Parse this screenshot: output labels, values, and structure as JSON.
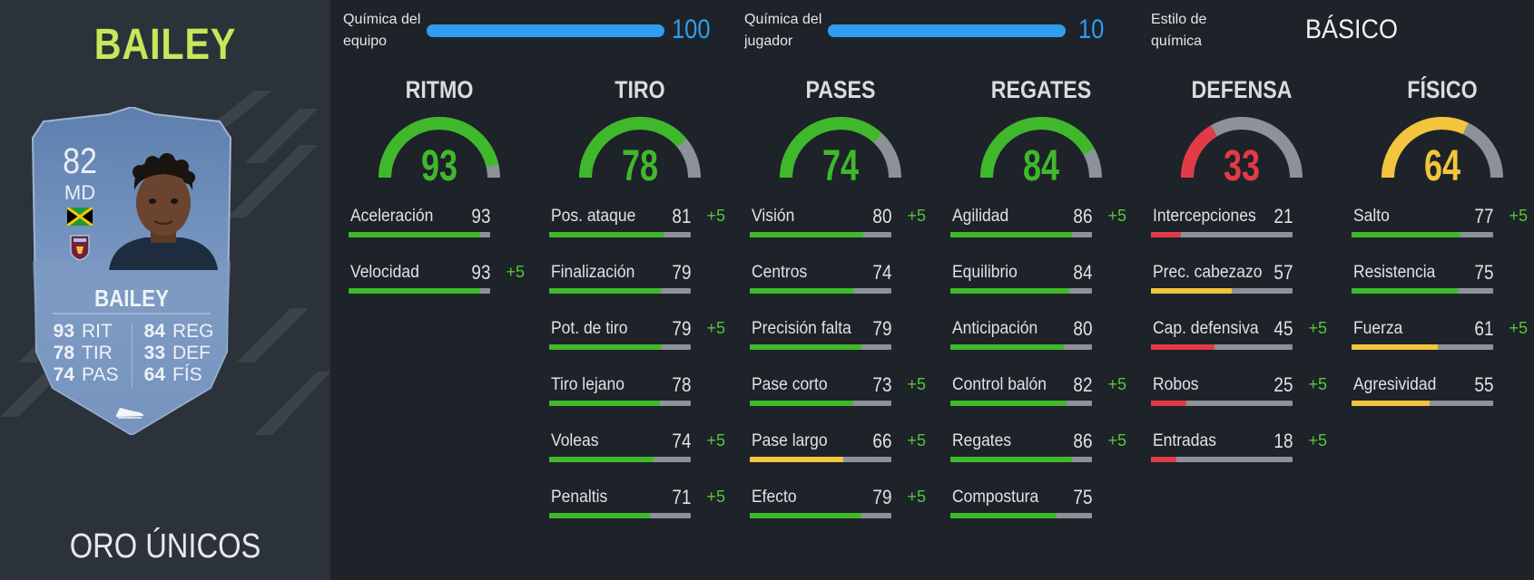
{
  "player": {
    "name": "BAILEY",
    "rarity": "ORO ÚNICOS",
    "card": {
      "rating": "82",
      "position": "MD",
      "name": "BAILEY",
      "stats": [
        {
          "value": "93",
          "label": "RIT"
        },
        {
          "value": "78",
          "label": "TIR"
        },
        {
          "value": "74",
          "label": "PAS"
        },
        {
          "value": "84",
          "label": "REG"
        },
        {
          "value": "33",
          "label": "DEF"
        },
        {
          "value": "64",
          "label": "FÍS"
        }
      ]
    }
  },
  "chemistry": {
    "team_label_1": "Química del",
    "team_label_2": "equipo",
    "team_value": "100",
    "team_fraction": 1.0,
    "player_label_1": "Química del",
    "player_label_2": "jugador",
    "player_value": "10",
    "player_fraction": 1.0,
    "style_label_1": "Estilo de",
    "style_label_2": "química",
    "style_value": "BÁSICO"
  },
  "colors": {
    "green": "#3fb82c",
    "yellow": "#f2c53d",
    "red": "#e23a47",
    "blue": "#2f9df0",
    "track": "#8c9297"
  },
  "categories": [
    {
      "title": "RITMO",
      "value": "93",
      "rating": 93,
      "color": "green",
      "attributes": [
        {
          "name": "Aceleración",
          "value": "93",
          "bonus": "",
          "color": "green"
        },
        {
          "name": "Velocidad",
          "value": "93",
          "bonus": "+5",
          "color": "green"
        }
      ]
    },
    {
      "title": "TIRO",
      "value": "78",
      "rating": 78,
      "color": "green",
      "attributes": [
        {
          "name": "Pos. ataque",
          "value": "81",
          "bonus": "+5",
          "color": "green"
        },
        {
          "name": "Finalización",
          "value": "79",
          "bonus": "",
          "color": "green"
        },
        {
          "name": "Pot. de tiro",
          "value": "79",
          "bonus": "+5",
          "color": "green"
        },
        {
          "name": "Tiro lejano",
          "value": "78",
          "bonus": "",
          "color": "green"
        },
        {
          "name": "Voleas",
          "value": "74",
          "bonus": "+5",
          "color": "green"
        },
        {
          "name": "Penaltis",
          "value": "71",
          "bonus": "+5",
          "color": "green"
        }
      ]
    },
    {
      "title": "PASES",
      "value": "74",
      "rating": 74,
      "color": "green",
      "attributes": [
        {
          "name": "Visión",
          "value": "80",
          "bonus": "+5",
          "color": "green"
        },
        {
          "name": "Centros",
          "value": "74",
          "bonus": "",
          "color": "green"
        },
        {
          "name": "Precisión falta",
          "value": "79",
          "bonus": "",
          "color": "green"
        },
        {
          "name": "Pase corto",
          "value": "73",
          "bonus": "+5",
          "color": "green"
        },
        {
          "name": "Pase largo",
          "value": "66",
          "bonus": "+5",
          "color": "yellow"
        },
        {
          "name": "Efecto",
          "value": "79",
          "bonus": "+5",
          "color": "green"
        }
      ]
    },
    {
      "title": "REGATES",
      "value": "84",
      "rating": 84,
      "color": "green",
      "attributes": [
        {
          "name": "Agilidad",
          "value": "86",
          "bonus": "+5",
          "color": "green"
        },
        {
          "name": "Equilibrio",
          "value": "84",
          "bonus": "",
          "color": "green"
        },
        {
          "name": "Anticipación",
          "value": "80",
          "bonus": "",
          "color": "green"
        },
        {
          "name": "Control balón",
          "value": "82",
          "bonus": "+5",
          "color": "green"
        },
        {
          "name": "Regates",
          "value": "86",
          "bonus": "+5",
          "color": "green"
        },
        {
          "name": "Compostura",
          "value": "75",
          "bonus": "",
          "color": "green"
        }
      ]
    },
    {
      "title": "DEFENSA",
      "value": "33",
      "rating": 33,
      "color": "red",
      "attributes": [
        {
          "name": "Intercepciones",
          "value": "21",
          "bonus": "",
          "color": "red"
        },
        {
          "name": "Prec. cabezazo",
          "value": "57",
          "bonus": "",
          "color": "yellow"
        },
        {
          "name": "Cap. defensiva",
          "value": "45",
          "bonus": "+5",
          "color": "red"
        },
        {
          "name": "Robos",
          "value": "25",
          "bonus": "+5",
          "color": "red"
        },
        {
          "name": "Entradas",
          "value": "18",
          "bonus": "+5",
          "color": "red"
        }
      ]
    },
    {
      "title": "FÍSICO",
      "value": "64",
      "rating": 64,
      "color": "yellow",
      "attributes": [
        {
          "name": "Salto",
          "value": "77",
          "bonus": "+5",
          "color": "green"
        },
        {
          "name": "Resistencia",
          "value": "75",
          "bonus": "",
          "color": "green"
        },
        {
          "name": "Fuerza",
          "value": "61",
          "bonus": "+5",
          "color": "yellow"
        },
        {
          "name": "Agresividad",
          "value": "55",
          "bonus": "",
          "color": "yellow"
        }
      ]
    }
  ]
}
